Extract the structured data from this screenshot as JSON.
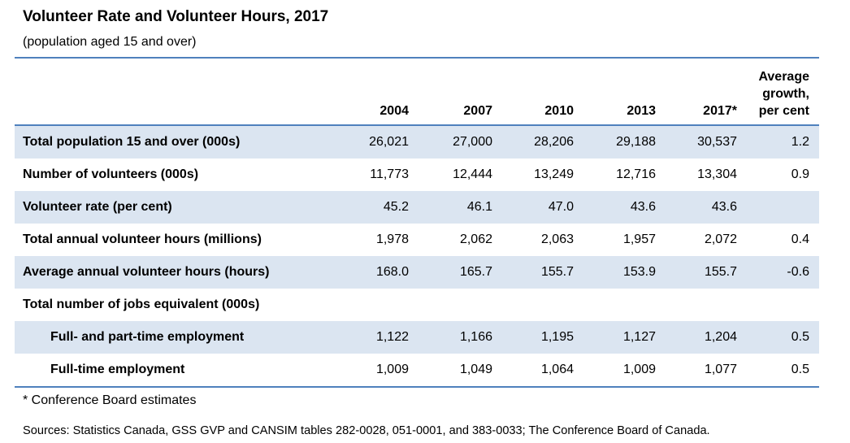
{
  "title": "Volunteer Rate and Volunteer Hours, 2017",
  "subtitle": "(population aged 15 and over)",
  "table": {
    "headers": [
      "",
      "2004",
      "2007",
      "2010",
      "2013",
      "2017*",
      "Average growth, per cent"
    ],
    "rows": [
      {
        "label": "Total population 15 and over (000s)",
        "values": [
          "26,021",
          "27,000",
          "28,206",
          "29,188",
          "30,537",
          "1.2"
        ]
      },
      {
        "label": "Number of volunteers (000s)",
        "values": [
          "11,773",
          "12,444",
          "13,249",
          "12,716",
          "13,304",
          "0.9"
        ]
      },
      {
        "label": "Volunteer rate (per cent)",
        "values": [
          "45.2",
          "46.1",
          "47.0",
          "43.6",
          "43.6",
          ""
        ]
      },
      {
        "label": "Total annual volunteer hours (millions)",
        "values": [
          "1,978",
          "2,062",
          "2,063",
          "1,957",
          "2,072",
          "0.4"
        ]
      },
      {
        "label": "Average annual volunteer hours (hours)",
        "values": [
          "168.0",
          "165.7",
          "155.7",
          "153.9",
          "155.7",
          "-0.6"
        ]
      },
      {
        "label": "Total number of jobs equivalent (000s)",
        "values": [
          "",
          "",
          "",
          "",
          "",
          ""
        ]
      },
      {
        "label": "Full- and part-time employment",
        "values": [
          "1,122",
          "1,166",
          "1,195",
          "1,127",
          "1,204",
          "0.5"
        ]
      },
      {
        "label": "Full-time employment",
        "values": [
          "1,009",
          "1,049",
          "1,064",
          "1,009",
          "1,077",
          "0.5"
        ]
      }
    ]
  },
  "footnote": "* Conference Board estimates",
  "sources": "Sources: Statistics Canada, GSS GVP and CANSIM tables 282-0028, 051-0001, and 383-0033; The Conference Board of Canada.",
  "colors": {
    "accent": "#4f81bd",
    "row_shade": "#dbe5f1"
  }
}
